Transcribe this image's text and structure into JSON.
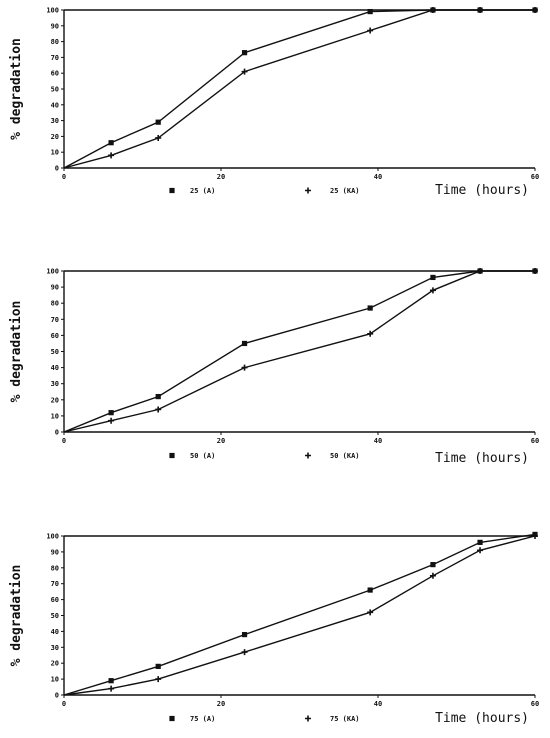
{
  "chart_data": [
    {
      "type": "line",
      "xlabel": "Time (hours)",
      "ylabel": "% degradation",
      "xlim": [
        0,
        60
      ],
      "ylim": [
        0,
        100
      ],
      "xticks": [
        "0",
        "20",
        "40",
        "60"
      ],
      "yticks": [
        "0",
        "10",
        "20",
        "30",
        "40",
        "50",
        "60",
        "70",
        "80",
        "90",
        "100"
      ],
      "grid": false,
      "legend_position": "bottom",
      "series": [
        {
          "name": "25 (A)",
          "marker": "square",
          "x": [
            0,
            6,
            12,
            23,
            39,
            47,
            53,
            60
          ],
          "y": [
            0,
            16,
            29,
            73,
            99,
            100,
            100,
            100
          ]
        },
        {
          "name": "25 (KA)",
          "marker": "plus",
          "x": [
            0,
            6,
            12,
            23,
            39,
            47,
            53,
            60
          ],
          "y": [
            0,
            8,
            19,
            61,
            87,
            100,
            100,
            100
          ]
        }
      ]
    },
    {
      "type": "line",
      "xlabel": "Time (hours)",
      "ylabel": "% degradation",
      "xlim": [
        0,
        60
      ],
      "ylim": [
        0,
        100
      ],
      "xticks": [
        "0",
        "20",
        "40",
        "60"
      ],
      "yticks": [
        "0",
        "10",
        "20",
        "30",
        "40",
        "50",
        "60",
        "70",
        "80",
        "90",
        "100"
      ],
      "grid": false,
      "legend_position": "bottom",
      "series": [
        {
          "name": "50 (A)",
          "marker": "square",
          "x": [
            0,
            6,
            12,
            23,
            39,
            47,
            53,
            60
          ],
          "y": [
            0,
            12,
            22,
            55,
            77,
            96,
            100,
            100
          ]
        },
        {
          "name": "50 (KA)",
          "marker": "plus",
          "x": [
            0,
            6,
            12,
            23,
            39,
            47,
            53,
            60
          ],
          "y": [
            0,
            7,
            14,
            40,
            61,
            88,
            100,
            100
          ]
        }
      ]
    },
    {
      "type": "line",
      "xlabel": "Time (hours)",
      "ylabel": "% degradation",
      "xlim": [
        0,
        60
      ],
      "ylim": [
        0,
        100
      ],
      "xticks": [
        "0",
        "20",
        "40",
        "60"
      ],
      "yticks": [
        "0",
        "10",
        "20",
        "30",
        "40",
        "50",
        "60",
        "70",
        "80",
        "90",
        "100"
      ],
      "grid": false,
      "legend_position": "bottom",
      "series": [
        {
          "name": "75 (A)",
          "marker": "square",
          "x": [
            0,
            6,
            12,
            23,
            39,
            47,
            53,
            60
          ],
          "y": [
            0,
            9,
            18,
            38,
            66,
            82,
            96,
            101
          ]
        },
        {
          "name": "75 (KA)",
          "marker": "plus",
          "x": [
            0,
            6,
            12,
            23,
            39,
            47,
            53,
            60
          ],
          "y": [
            0,
            4,
            10,
            27,
            52,
            75,
            91,
            100
          ]
        }
      ]
    }
  ]
}
